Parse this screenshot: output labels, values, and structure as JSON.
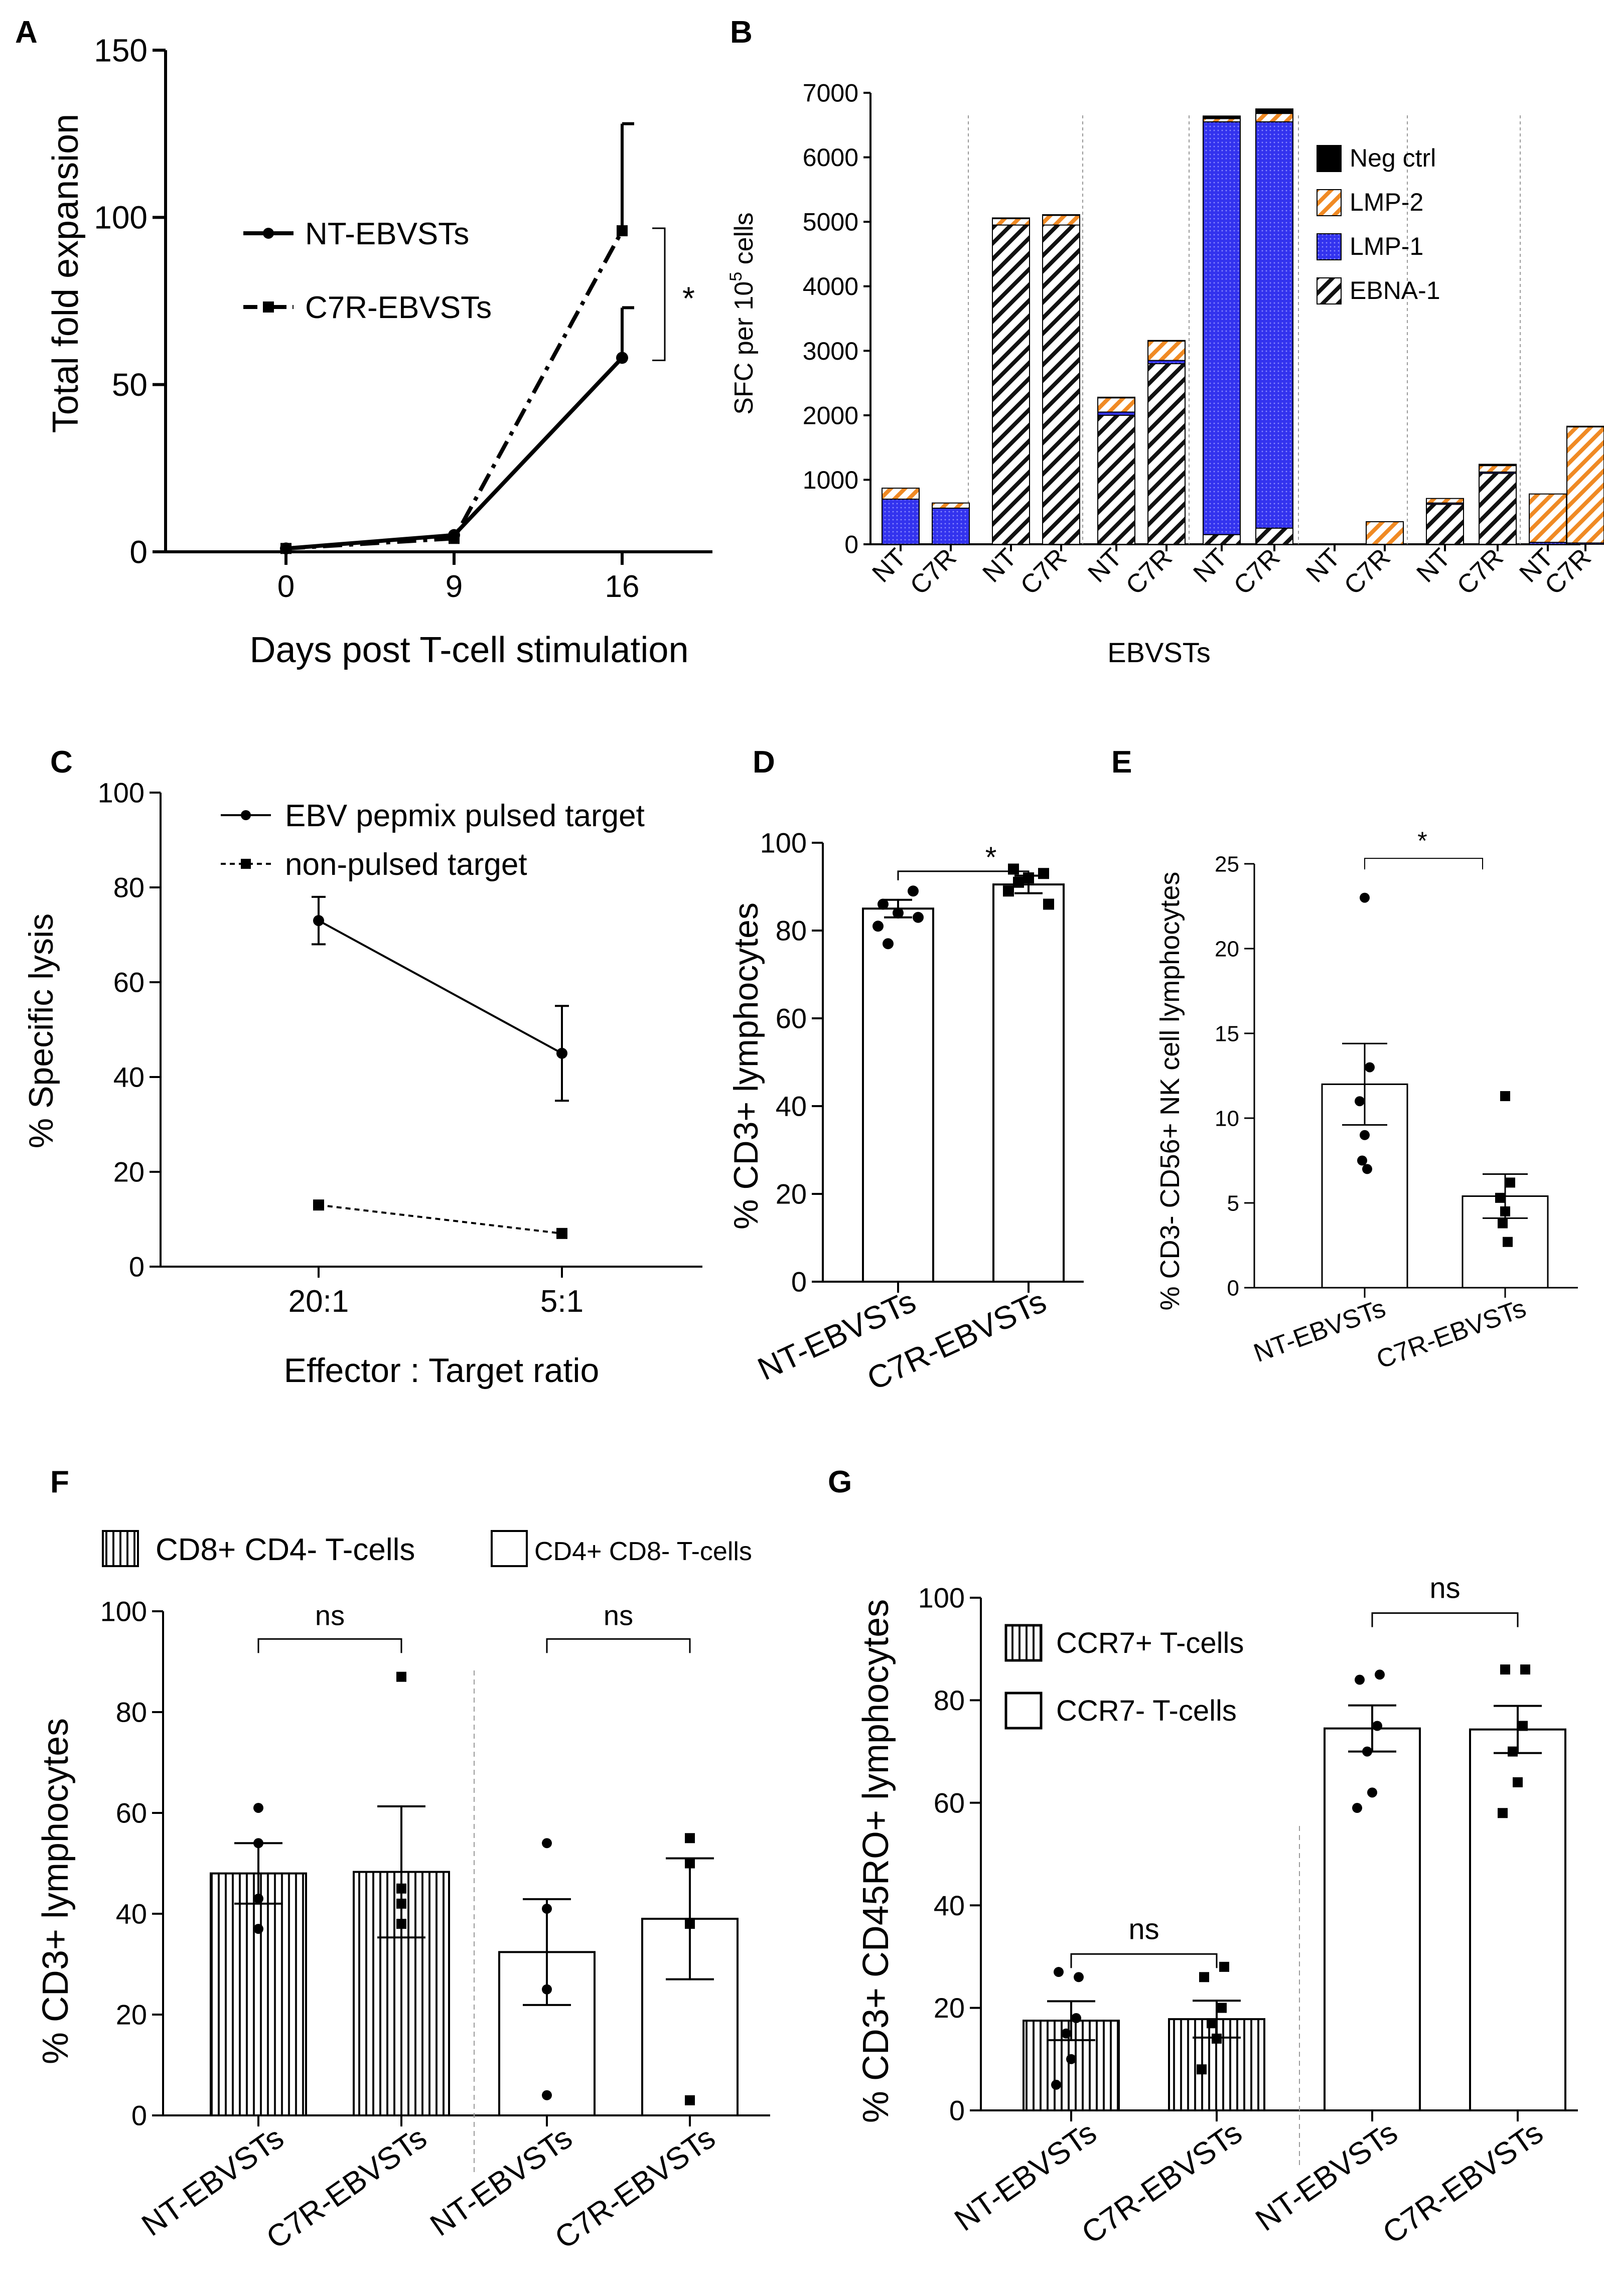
{
  "panels": {
    "A": {
      "letter": "A",
      "chart_data": {
        "type": "line",
        "x": [
          "0",
          "9",
          "16"
        ],
        "series": [
          {
            "name": "NT-EBVSTs",
            "values": [
              1,
              5,
              58
            ],
            "err": [
              0,
              0,
              15
            ],
            "style": "solid",
            "marker": "circle"
          },
          {
            "name": "C7R-EBVSTs",
            "values": [
              1,
              4,
              96
            ],
            "err": [
              0,
              0,
              32
            ],
            "style": "dashdot",
            "marker": "square"
          }
        ],
        "xlabel": "Days post T-cell stimulation",
        "ylabel": "Total fold expansion",
        "ylim": [
          0,
          150
        ],
        "yticks": [
          "0",
          "50",
          "100",
          "150"
        ],
        "significance": "*"
      }
    },
    "B": {
      "letter": "B",
      "chart_data": {
        "type": "bar",
        "stacked": true,
        "categories": [
          "NT",
          "C7R",
          "NT",
          "C7R",
          "NT",
          "C7R",
          "NT",
          "C7R",
          "NT",
          "C7R",
          "NT",
          "C7R",
          "NT",
          "C7R"
        ],
        "series": [
          {
            "name": "EBNA-1",
            "color": "#ffffff",
            "pattern": "hatch-black",
            "values": [
              0,
              0,
              4950,
              4950,
              2000,
              2800,
              150,
              250,
              0,
              0,
              620,
              1100,
              0,
              0
            ]
          },
          {
            "name": "LMP-1",
            "color": "#3333ee",
            "pattern": "dots",
            "values": [
              700,
              560,
              0,
              0,
              50,
              50,
              6400,
              6300,
              0,
              0,
              20,
              20,
              30,
              20
            ]
          },
          {
            "name": "LMP-2",
            "color": "#f08a24",
            "pattern": "hatch-orange",
            "values": [
              170,
              80,
              100,
              150,
              220,
              300,
              50,
              130,
              0,
              350,
              70,
              100,
              750,
              1800
            ]
          },
          {
            "name": "Neg ctrl",
            "color": "#000000",
            "pattern": "solid",
            "values": [
              0,
              0,
              10,
              10,
              10,
              10,
              40,
              70,
              0,
              0,
              0,
              20,
              0,
              10
            ]
          }
        ],
        "legend_order": [
          "Neg ctrl",
          "LMP-2",
          "LMP-1",
          "EBNA-1"
        ],
        "xlabel": "EBVSTs",
        "ylabel_main": "SFC per 10",
        "ylabel_exp": "5",
        "ylabel_tail": " cells",
        "ylim": [
          0,
          7000
        ],
        "yticks": [
          "0",
          "1000",
          "2000",
          "3000",
          "4000",
          "5000",
          "6000",
          "7000"
        ]
      }
    },
    "C": {
      "letter": "C",
      "chart_data": {
        "type": "line",
        "x": [
          "20:1",
          "5:1"
        ],
        "series": [
          {
            "name": "EBV pepmix pulsed target",
            "values": [
              73,
              45
            ],
            "err": [
              5,
              10
            ],
            "style": "solid",
            "marker": "circle"
          },
          {
            "name": "non-pulsed target",
            "values": [
              13,
              7
            ],
            "err": [
              0,
              0
            ],
            "style": "dashed",
            "marker": "square"
          }
        ],
        "xlabel": "Effector : Target ratio",
        "ylabel": "% Specific lysis",
        "ylim": [
          0,
          100
        ],
        "yticks": [
          "0",
          "20",
          "40",
          "60",
          "80",
          "100"
        ]
      }
    },
    "D": {
      "letter": "D",
      "chart_data": {
        "type": "bar",
        "categories": [
          "NT-EBVSTs",
          "C7R-EBVSTs"
        ],
        "values": [
          85,
          90.5
        ],
        "err": [
          2,
          2
        ],
        "points": [
          [
            89,
            86,
            84,
            81,
            83,
            77
          ],
          [
            93,
            94,
            92,
            89,
            86,
            91
          ]
        ],
        "marker": [
          "circle",
          "square"
        ],
        "ylabel": "% CD3+ lymphocytes",
        "ylim": [
          0,
          100
        ],
        "yticks": [
          "0",
          "20",
          "40",
          "60",
          "80",
          "100"
        ],
        "significance": "*"
      }
    },
    "E": {
      "letter": "E",
      "chart_data": {
        "type": "bar",
        "categories": [
          "NT-EBVSTs",
          "C7R-EBVSTs"
        ],
        "values": [
          12,
          5.4
        ],
        "err": [
          2.4,
          1.3
        ],
        "points": [
          [
            23,
            13,
            11,
            9,
            7.5,
            7
          ],
          [
            11.3,
            6.2,
            5.3,
            4.5,
            3.8,
            2.7
          ]
        ],
        "marker": [
          "circle",
          "square"
        ],
        "ylabel": "% CD3- CD56+ NK cell lymphocytes",
        "ylim": [
          0,
          25
        ],
        "yticks": [
          "0",
          "5",
          "10",
          "15",
          "20",
          "25"
        ],
        "significance": "*"
      }
    },
    "F": {
      "letter": "F",
      "chart_data": {
        "type": "bar",
        "categories": [
          "NT-EBVSTs",
          "C7R-EBVSTs",
          "NT-EBVSTs",
          "C7R-EBVSTs"
        ],
        "group_of": [
          0,
          0,
          1,
          1
        ],
        "values": [
          48,
          48.3,
          32.4,
          39
        ],
        "err": [
          6,
          13,
          10.5,
          12
        ],
        "points": [
          [
            61,
            54,
            43,
            37
          ],
          [
            87,
            45,
            42,
            38
          ],
          [
            54,
            41,
            25,
            4
          ],
          [
            55,
            50,
            38,
            3
          ]
        ],
        "marker": [
          "circle",
          "square",
          "circle",
          "square"
        ],
        "groups": [
          {
            "name": "CD8+ CD4- T-cells",
            "pattern": "vstripes"
          },
          {
            "name": "CD4+ CD8- T-cells",
            "pattern": "white"
          }
        ],
        "ylabel": "% CD3+ lymphocytes",
        "ylim": [
          0,
          100
        ],
        "yticks": [
          "0",
          "20",
          "40",
          "60",
          "80",
          "100"
        ],
        "significance": [
          "ns",
          "ns"
        ]
      }
    },
    "G": {
      "letter": "G",
      "chart_data": {
        "type": "bar",
        "categories": [
          "NT-EBVSTs",
          "C7R-EBVSTs",
          "NT-EBVSTs",
          "C7R-EBVSTs"
        ],
        "group_of": [
          0,
          0,
          1,
          1
        ],
        "values": [
          17.5,
          17.8,
          74.5,
          74.3
        ],
        "err": [
          3.8,
          3.6,
          4.5,
          4.6
        ],
        "points": [
          [
            26,
            27,
            18,
            15,
            10,
            5
          ],
          [
            28,
            26,
            20,
            17,
            14,
            8
          ],
          [
            85,
            84,
            75,
            70,
            62,
            59
          ],
          [
            86,
            86,
            75,
            70,
            64,
            58
          ]
        ],
        "marker": [
          "circle",
          "square",
          "circle",
          "square"
        ],
        "groups": [
          {
            "name": "CCR7+ T-cells",
            "pattern": "vstripes"
          },
          {
            "name": "CCR7- T-cells",
            "pattern": "white"
          }
        ],
        "ylabel": "% CD3+ CD45RO+ lymphocytes",
        "ylim": [
          0,
          100
        ],
        "yticks": [
          "0",
          "20",
          "40",
          "60",
          "80",
          "100"
        ],
        "significance": [
          "ns",
          "ns"
        ]
      }
    }
  }
}
